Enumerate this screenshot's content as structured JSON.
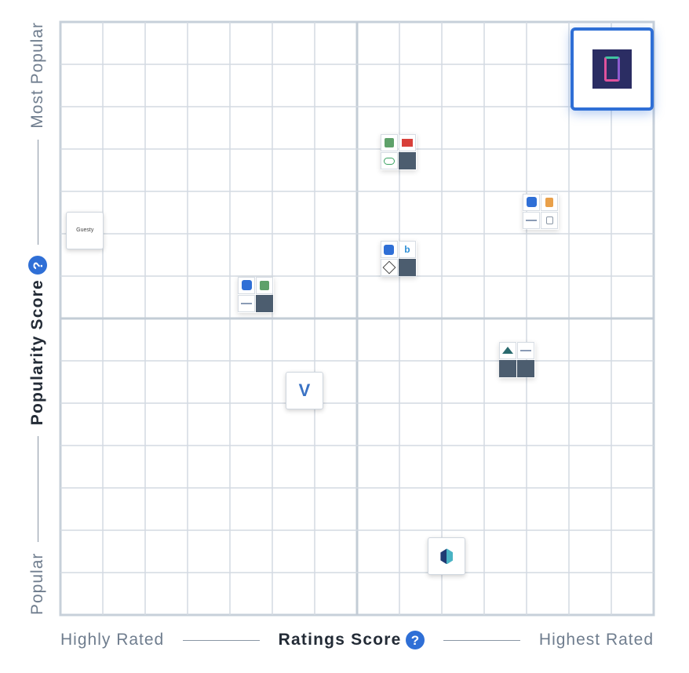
{
  "chart_data": {
    "type": "scatter",
    "x_axis": {
      "label": "Ratings Score",
      "low_label": "Highly Rated",
      "high_label": "Highest Rated",
      "range": [
        0,
        100
      ],
      "grid_divisions": 14
    },
    "y_axis": {
      "label": "Popularity Score",
      "low_label": "Popular",
      "high_label": "Most Popular",
      "range": [
        0,
        100
      ],
      "grid_divisions": 14
    },
    "grid": true,
    "points": [
      {
        "id": "featured-vendor",
        "x": 93,
        "y": 92,
        "kind": "featured"
      },
      {
        "id": "cluster-top-center",
        "x": 57,
        "y": 78,
        "kind": "cluster",
        "cells": [
          "green",
          "red",
          "cloud",
          "dark"
        ]
      },
      {
        "id": "cluster-right",
        "x": 81,
        "y": 68,
        "kind": "cluster",
        "cells": [
          "blue",
          "orange",
          "text",
          "lock"
        ]
      },
      {
        "id": "guesty",
        "x": 4,
        "y": 65,
        "kind": "single",
        "label": "Guesty"
      },
      {
        "id": "cluster-center",
        "x": 57,
        "y": 60,
        "kind": "cluster",
        "cells": [
          "blue",
          "b",
          "cube",
          "dark"
        ]
      },
      {
        "id": "cluster-left",
        "x": 33,
        "y": 54,
        "kind": "cluster",
        "cells": [
          "blue",
          "green",
          "text",
          "dark"
        ]
      },
      {
        "id": "cluster-lower-right",
        "x": 77,
        "y": 43,
        "kind": "cluster",
        "cells": [
          "mountain",
          "text",
          "dark",
          "dark"
        ]
      },
      {
        "id": "vendor-v",
        "x": 41,
        "y": 38,
        "kind": "single"
      },
      {
        "id": "vendor-cube",
        "x": 65,
        "y": 10,
        "kind": "single"
      }
    ]
  }
}
